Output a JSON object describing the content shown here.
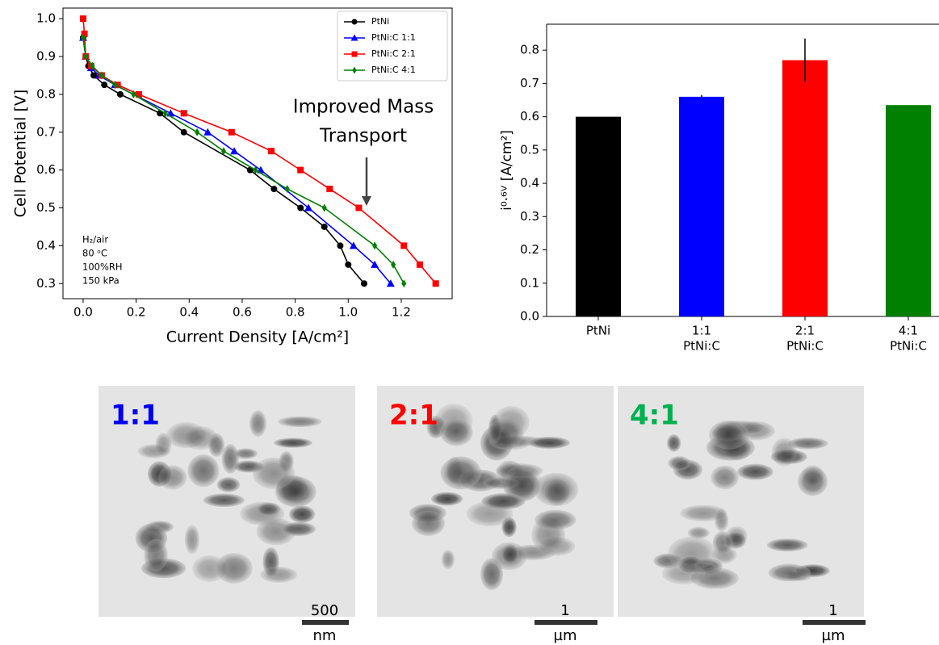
{
  "chart_data": [
    {
      "type": "line",
      "xlabel": "Current Density [A/cm²]",
      "ylabel": "Cell Potential [V]",
      "xlim": [
        -0.076,
        1.392
      ],
      "ylim": [
        0.26,
        1.028
      ],
      "xticks": [
        {
          "value": 0,
          "label": "0.0"
        },
        {
          "value": 0.2,
          "label": "0.2"
        },
        {
          "value": 0.4,
          "label": "0.4"
        },
        {
          "value": 0.6,
          "label": "0.6"
        },
        {
          "value": 0.8,
          "label": "0.8"
        },
        {
          "value": 1.0,
          "label": "1.0"
        },
        {
          "value": 1.2,
          "label": "1.2"
        }
      ],
      "yticks": [
        {
          "value": 0.3,
          "label": "0.3"
        },
        {
          "value": 0.4,
          "label": "0.4"
        },
        {
          "value": 0.5,
          "label": "0.5"
        },
        {
          "value": 0.6,
          "label": "0.6"
        },
        {
          "value": 0.7,
          "label": "0.7"
        },
        {
          "value": 0.8,
          "label": "0.8"
        },
        {
          "value": 0.9,
          "label": "0.9"
        },
        {
          "value": 1.0,
          "label": "1.0"
        }
      ],
      "legend": "upper right",
      "series": [
        {
          "name": "PtNi",
          "color": "#000000",
          "marker": "circle",
          "x": [
            0.0,
            0.01,
            0.02,
            0.04,
            0.08,
            0.14,
            0.29,
            0.38,
            0.63,
            0.72,
            0.82,
            0.91,
            0.97,
            1.0,
            1.06
          ],
          "values": [
            0.95,
            0.9,
            0.875,
            0.85,
            0.825,
            0.8,
            0.75,
            0.7,
            0.6,
            0.55,
            0.5,
            0.45,
            0.4,
            0.35,
            0.3
          ]
        },
        {
          "name": "PtNi:C 1:1",
          "color": "#0000ff",
          "marker": "triangle",
          "x": [
            0.0,
            0.01,
            0.03,
            0.06,
            0.12,
            0.33,
            0.47,
            0.57,
            0.67,
            0.85,
            1.02,
            1.1,
            1.16
          ],
          "values": [
            0.95,
            0.9,
            0.87,
            0.85,
            0.825,
            0.75,
            0.7,
            0.65,
            0.6,
            0.5,
            0.4,
            0.35,
            0.3
          ]
        },
        {
          "name": "PtNi:C 2:1",
          "color": "#ff0000",
          "marker": "square",
          "x": [
            0.0,
            0.005,
            0.01,
            0.03,
            0.07,
            0.13,
            0.21,
            0.38,
            0.56,
            0.71,
            0.82,
            0.93,
            1.04,
            1.21,
            1.27,
            1.33
          ],
          "values": [
            1.0,
            0.96,
            0.9,
            0.875,
            0.85,
            0.825,
            0.8,
            0.75,
            0.7,
            0.65,
            0.6,
            0.55,
            0.5,
            0.4,
            0.35,
            0.3
          ]
        },
        {
          "name": "PtNi:C 4:1",
          "color": "#008000",
          "marker": "diamond",
          "x": [
            0.0,
            0.01,
            0.035,
            0.07,
            0.12,
            0.19,
            0.31,
            0.43,
            0.53,
            0.65,
            0.77,
            0.91,
            1.1,
            1.17,
            1.21
          ],
          "values": [
            0.95,
            0.9,
            0.875,
            0.85,
            0.825,
            0.8,
            0.75,
            0.7,
            0.65,
            0.6,
            0.55,
            0.5,
            0.4,
            0.35,
            0.3
          ]
        }
      ],
      "annotations": [
        [
          "Improved Mass",
          "Transport"
        ],
        [
          "H₂/air",
          "80 ᵒC",
          "100%RH",
          "150 kPa"
        ]
      ]
    },
    {
      "type": "bar",
      "ylabel": "i⁰·⁶ⱽ [A/cm²]",
      "categories": [
        [
          "PtNi"
        ],
        [
          "1:1",
          "PtNi:C"
        ],
        [
          "2:1",
          "PtNi:C"
        ],
        [
          "4:1",
          "PtNi:C"
        ]
      ],
      "values": [
        0.6,
        0.66,
        0.77,
        0.635
      ],
      "errors": [
        null,
        0.005,
        0.065,
        null
      ],
      "colors": [
        "#000000",
        "#0000ff",
        "#ff0000",
        "#008000"
      ],
      "ylim": [
        0,
        0.878
      ],
      "yticks": [
        {
          "value": 0,
          "label": "0.0"
        },
        {
          "value": 0.1,
          "label": "0.1"
        },
        {
          "value": 0.2,
          "label": "0.2"
        },
        {
          "value": 0.3,
          "label": "0.3"
        },
        {
          "value": 0.4,
          "label": "0.4"
        },
        {
          "value": 0.5,
          "label": "0.5"
        },
        {
          "value": 0.6,
          "label": "0.6"
        },
        {
          "value": 0.7,
          "label": "0.7"
        },
        {
          "value": 0.8,
          "label": "0.8"
        }
      ]
    }
  ],
  "images": [
    {
      "label": "1:1",
      "color": "#0000ee",
      "scale": "500",
      "unit": "nm"
    },
    {
      "label": "2:1",
      "color": "#ff0000",
      "scale": "1",
      "unit": "µm"
    },
    {
      "label": "4:1",
      "color": "#00b050",
      "scale": "1",
      "unit": "µm"
    }
  ]
}
